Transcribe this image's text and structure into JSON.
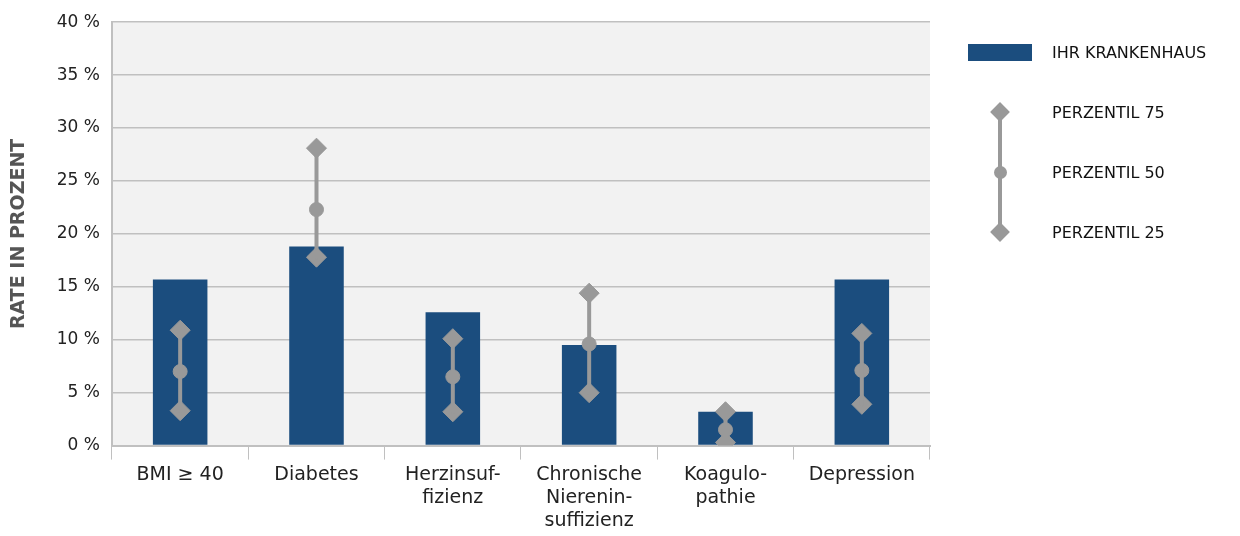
{
  "chart_data": {
    "type": "bar",
    "categories": [
      "BMI ≥ 40",
      "Diabetes",
      "Herzinsuf-\nfizienz",
      "Chronische\nNierenin-\nsuffizienz",
      "Koagulo-\npathie",
      "Depression"
    ],
    "ylabel": "RATE IN PROZENT",
    "series": [
      {
        "name": "IHR KRANKENHAUS",
        "type": "bar",
        "color": "#1b4d7e",
        "values": [
          15.7,
          18.8,
          12.6,
          9.5,
          3.2,
          15.7
        ]
      },
      {
        "name": "PERZENTIL 75",
        "type": "scatter",
        "marker": "diamond",
        "color": "#999999",
        "values": [
          10.9,
          28.1,
          10.1,
          14.4,
          3.2,
          10.6
        ]
      },
      {
        "name": "PERZENTIL 50",
        "type": "scatter",
        "marker": "circle",
        "color": "#999999",
        "values": [
          7.0,
          22.3,
          6.5,
          9.6,
          1.5,
          7.1
        ]
      },
      {
        "name": "PERZENTIL 25",
        "type": "scatter",
        "marker": "diamond",
        "color": "#999999",
        "values": [
          3.3,
          17.8,
          3.2,
          5.0,
          0.3,
          3.9
        ]
      }
    ],
    "ylim": [
      0,
      40
    ],
    "yticks": [
      {
        "value": 0,
        "label": "0 %"
      },
      {
        "value": 5,
        "label": "5 %"
      },
      {
        "value": 10,
        "label": "10 %"
      },
      {
        "value": 15,
        "label": "15 %"
      },
      {
        "value": 20,
        "label": "20 %"
      },
      {
        "value": 25,
        "label": "25 %"
      },
      {
        "value": 30,
        "label": "30 %"
      },
      {
        "value": 35,
        "label": "35 %"
      },
      {
        "value": 40,
        "label": "40 %"
      }
    ],
    "grid": "y",
    "legend": "right"
  }
}
